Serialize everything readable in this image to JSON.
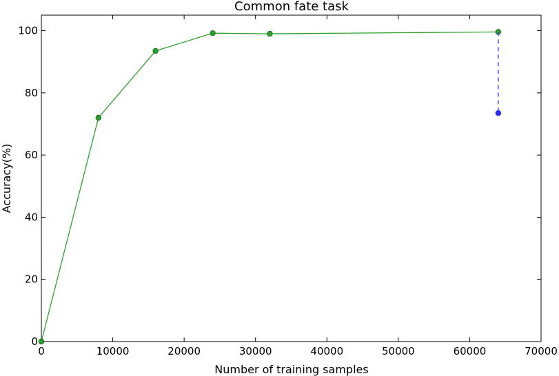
{
  "chart_data": {
    "type": "line",
    "title": "Common fate task",
    "xlabel": "Number of training samples",
    "ylabel": "Accuracy(%)",
    "xlim": [
      0,
      70000
    ],
    "ylim": [
      0,
      105
    ],
    "xticks": [
      0,
      10000,
      20000,
      30000,
      40000,
      50000,
      60000,
      70000
    ],
    "yticks": [
      0,
      20,
      40,
      60,
      80,
      100
    ],
    "grid": false,
    "series": [
      {
        "color": "#2ca02c",
        "line_style": "solid",
        "marker": "circle",
        "x": [
          0,
          8000,
          16000,
          24000,
          32000,
          64000
        ],
        "y": [
          0,
          72,
          93.5,
          99.2,
          99.0,
          99.6
        ]
      },
      {
        "color": "#2a2af0",
        "line_style": "dashed",
        "marker": "circle",
        "x": [
          64000,
          64000
        ],
        "y": [
          99.6,
          73.5
        ]
      }
    ]
  }
}
